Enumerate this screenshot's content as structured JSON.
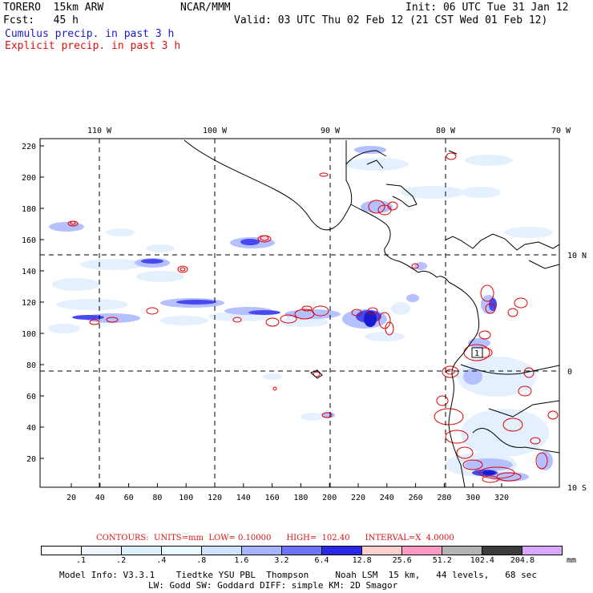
{
  "header": {
    "model": "TORERO  15km ARW",
    "org": "NCAR/MMM",
    "init": "Init: 06 UTC Tue 31 Jan 12",
    "fcst": "Fcst:   45 h",
    "valid": "Valid: 03 UTC Thu 02 Feb 12 (21 CST Wed 01 Feb 12)",
    "legend_blue": "Cumulus precip. in past 3 h",
    "legend_red": "Explicit precip. in past 3 h"
  },
  "map": {
    "lon_labels": [
      "110 W",
      "100 W",
      "90 W",
      "80 W",
      "70 W"
    ],
    "lat_labels": [
      "10 N",
      "0",
      "10 S"
    ],
    "x_ticks": [
      "20",
      "40",
      "60",
      "80",
      "100",
      "120",
      "140",
      "160",
      "180",
      "200",
      "220",
      "240",
      "260",
      "280",
      "300",
      "320"
    ],
    "y_ticks": [
      "20",
      "40",
      "60",
      "80",
      "100",
      "120",
      "140",
      "160",
      "180",
      "200",
      "220"
    ],
    "max_marker": "1"
  },
  "contours_text": "CONTOURS:  UNITS=mm  LOW= 0.10000      HIGH=  102.40      INTERVAL=X  4.0000",
  "colorbar": {
    "labels": [
      ".1",
      ".2",
      ".4",
      ".8",
      "1.6",
      "3.2",
      "6.4",
      "12.8",
      "25.6",
      "51.2",
      "102.4",
      "204.8"
    ],
    "unit": "mm",
    "colors": [
      "#ffffff",
      "#f0f6ff",
      "#dcefff",
      "#e8fbff",
      "#cde3ff",
      "#a8b4ff",
      "#6e74ff",
      "#2828e6",
      "#ffd0d0",
      "#ff9ac4",
      "#b4b4b4",
      "#3c3c3c",
      "#d8a8ff"
    ]
  },
  "footer": {
    "line1": "Model Info: V3.3.1    Tiedtke YSU PBL  Thompson     Noah LSM  15 km,   44 levels,   68 sec",
    "line2": "LW: Godd SW: Goddard DIFF: simple KM: 2D Smagor"
  }
}
